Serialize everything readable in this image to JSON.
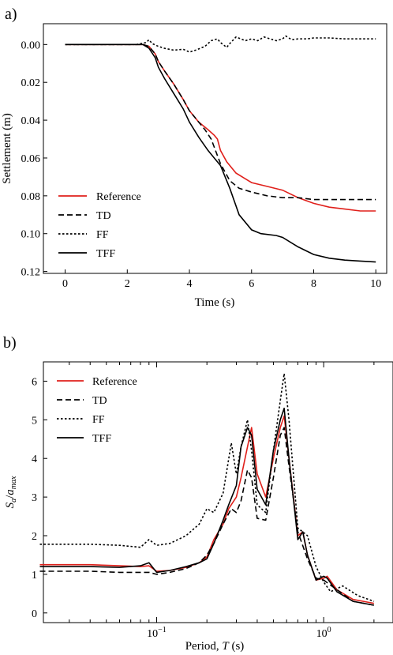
{
  "chart_data": [
    {
      "type": "line",
      "panel_label": "a)",
      "xlabel": "Time (s)",
      "ylabel": "Settlement (m)",
      "xlim": [
        -0.7,
        10.35
      ],
      "ylim": [
        0.121,
        -0.011
      ],
      "y_inverted": true,
      "x_scale": "linear",
      "grid": false,
      "legend_position": "lower-left",
      "xticks": [
        0,
        2,
        4,
        6,
        8,
        10
      ],
      "xtick_labels": [
        "0",
        "2",
        "4",
        "6",
        "8",
        "10"
      ],
      "yticks": [
        0.0,
        0.02,
        0.04,
        0.06,
        0.08,
        0.1,
        0.12
      ],
      "ytick_labels": [
        "0.00",
        "0.02",
        "0.04",
        "0.06",
        "0.08",
        "0.10",
        "0.12"
      ],
      "series": [
        {
          "name": "Reference",
          "color": "#e0201b",
          "style": "solid",
          "x": [
            0,
            2.5,
            2.7,
            2.9,
            3.0,
            3.2,
            3.5,
            3.8,
            4.0,
            4.3,
            4.6,
            4.8,
            4.9,
            5.0,
            5.2,
            5.5,
            5.8,
            6.0,
            6.5,
            7.0,
            7.5,
            8.0,
            8.5,
            9.0,
            9.5,
            10.0
          ],
          "y": [
            0,
            0,
            0.001,
            0.005,
            0.009,
            0.014,
            0.021,
            0.029,
            0.035,
            0.041,
            0.045,
            0.048,
            0.05,
            0.056,
            0.062,
            0.068,
            0.071,
            0.073,
            0.075,
            0.077,
            0.081,
            0.084,
            0.086,
            0.087,
            0.088,
            0.088
          ]
        },
        {
          "name": "TD",
          "color": "#000000",
          "style": "dashed",
          "x": [
            0,
            2.5,
            2.7,
            2.9,
            3.0,
            3.2,
            3.5,
            3.8,
            4.0,
            4.3,
            4.5,
            4.7,
            5.0,
            5.3,
            5.6,
            6.0,
            6.5,
            7.0,
            7.5,
            8.0,
            9.0,
            10.0
          ],
          "y": [
            0,
            0,
            0.001,
            0.005,
            0.009,
            0.014,
            0.021,
            0.029,
            0.035,
            0.041,
            0.045,
            0.05,
            0.063,
            0.072,
            0.076,
            0.078,
            0.08,
            0.081,
            0.081,
            0.082,
            0.082,
            0.082
          ]
        },
        {
          "name": "FF",
          "color": "#000000",
          "style": "dotted",
          "x": [
            0,
            2.3,
            2.6,
            2.7,
            2.8,
            3.0,
            3.2,
            3.5,
            3.8,
            4.0,
            4.2,
            4.5,
            4.7,
            4.9,
            5.0,
            5.2,
            5.3,
            5.5,
            5.8,
            6.0,
            6.2,
            6.4,
            6.6,
            6.8,
            7.0,
            7.1,
            7.2,
            7.3,
            7.5,
            7.8,
            8.0,
            8.5,
            9.0,
            9.5,
            10.0
          ],
          "y": [
            0,
            0,
            -0.001,
            -0.0025,
            -0.0005,
            0.001,
            0.002,
            0.003,
            0.0025,
            0.004,
            0.003,
            0.001,
            -0.002,
            -0.003,
            -0.001,
            0.0015,
            -0.0005,
            -0.004,
            -0.002,
            -0.003,
            -0.002,
            -0.004,
            -0.003,
            -0.002,
            -0.003,
            -0.0045,
            -0.0035,
            -0.0025,
            -0.003,
            -0.003,
            -0.0035,
            -0.0035,
            -0.003,
            -0.003,
            -0.003
          ]
        },
        {
          "name": "TFF",
          "color": "#000000",
          "style": "solid",
          "x": [
            0,
            2.5,
            2.7,
            2.9,
            3.0,
            3.2,
            3.5,
            3.8,
            4.0,
            4.3,
            4.6,
            4.8,
            5.0,
            5.3,
            5.6,
            6.0,
            6.3,
            6.8,
            7.0,
            7.5,
            8.0,
            8.5,
            9.0,
            9.5,
            10.0
          ],
          "y": [
            0,
            0,
            0.002,
            0.007,
            0.012,
            0.018,
            0.026,
            0.034,
            0.041,
            0.049,
            0.056,
            0.06,
            0.064,
            0.076,
            0.09,
            0.098,
            0.1,
            0.101,
            0.102,
            0.107,
            0.111,
            0.113,
            0.114,
            0.1145,
            0.115
          ]
        }
      ]
    },
    {
      "type": "line",
      "panel_label": "b)",
      "xlabel_prefix": "Period, ",
      "xlabel_var": "T",
      "xlabel_suffix": " (s)",
      "ylabel_var": "S",
      "ylabel_sub": "a",
      "ylabel_slash": "/",
      "ylabel_var2": "a",
      "ylabel_sub2": "max",
      "x_scale": "log",
      "xlim": [
        0.021,
        2.6
      ],
      "ylim": [
        -0.25,
        6.5
      ],
      "grid": false,
      "legend_position": "upper-left",
      "xtick_labels": [
        {
          "base": "10",
          "exp": "−1",
          "value": 0.1
        },
        {
          "base": "10",
          "exp": "0",
          "value": 1
        }
      ],
      "yticks": [
        0,
        1,
        2,
        3,
        4,
        5,
        6
      ],
      "ytick_labels": [
        "0",
        "1",
        "2",
        "3",
        "4",
        "5",
        "6"
      ],
      "series": [
        {
          "name": "Reference",
          "color": "#e0201b",
          "style": "solid",
          "x": [
            0.02,
            0.04,
            0.06,
            0.08,
            0.09,
            0.1,
            0.12,
            0.15,
            0.18,
            0.2,
            0.22,
            0.25,
            0.27,
            0.3,
            0.32,
            0.35,
            0.37,
            0.4,
            0.45,
            0.5,
            0.55,
            0.58,
            0.62,
            0.7,
            0.75,
            0.8,
            0.9,
            1.0,
            1.05,
            1.2,
            1.5,
            2.0
          ],
          "y": [
            1.25,
            1.25,
            1.22,
            1.2,
            1.22,
            1.08,
            1.1,
            1.18,
            1.3,
            1.45,
            1.9,
            2.3,
            2.7,
            3.0,
            3.5,
            4.3,
            4.8,
            3.6,
            3.0,
            4.0,
            4.8,
            5.1,
            4.0,
            2.0,
            2.1,
            1.5,
            0.85,
            0.9,
            0.95,
            0.6,
            0.35,
            0.25
          ]
        },
        {
          "name": "TD",
          "color": "#000000",
          "style": "dashed",
          "x": [
            0.02,
            0.04,
            0.06,
            0.08,
            0.09,
            0.1,
            0.12,
            0.15,
            0.18,
            0.2,
            0.22,
            0.25,
            0.28,
            0.3,
            0.32,
            0.35,
            0.37,
            0.4,
            0.45,
            0.5,
            0.55,
            0.58,
            0.62,
            0.7,
            0.8,
            0.9,
            1.0,
            1.2,
            1.5,
            2.0
          ],
          "y": [
            1.08,
            1.08,
            1.05,
            1.05,
            1.05,
            1.0,
            1.05,
            1.15,
            1.3,
            1.5,
            1.8,
            2.3,
            2.7,
            2.6,
            2.9,
            3.7,
            3.5,
            2.45,
            2.4,
            3.5,
            4.6,
            4.8,
            3.8,
            2.1,
            1.4,
            0.9,
            0.85,
            0.6,
            0.3,
            0.2
          ]
        },
        {
          "name": "FF",
          "color": "#000000",
          "style": "dotted",
          "x": [
            0.02,
            0.04,
            0.06,
            0.08,
            0.09,
            0.1,
            0.12,
            0.15,
            0.18,
            0.2,
            0.22,
            0.25,
            0.28,
            0.3,
            0.32,
            0.35,
            0.37,
            0.4,
            0.45,
            0.5,
            0.55,
            0.58,
            0.62,
            0.7,
            0.8,
            0.9,
            1.0,
            1.1,
            1.3,
            1.6,
            2.0
          ],
          "y": [
            1.78,
            1.78,
            1.75,
            1.7,
            1.9,
            1.75,
            1.8,
            2.0,
            2.3,
            2.7,
            2.6,
            3.1,
            4.4,
            3.6,
            4.3,
            5.0,
            4.2,
            2.8,
            2.6,
            4.2,
            5.5,
            6.2,
            5.0,
            2.2,
            2.0,
            1.2,
            0.8,
            0.55,
            0.7,
            0.45,
            0.3
          ]
        },
        {
          "name": "TFF",
          "color": "#000000",
          "style": "solid",
          "x": [
            0.02,
            0.04,
            0.06,
            0.08,
            0.09,
            0.1,
            0.12,
            0.15,
            0.18,
            0.2,
            0.22,
            0.25,
            0.27,
            0.3,
            0.32,
            0.35,
            0.37,
            0.4,
            0.45,
            0.5,
            0.55,
            0.58,
            0.62,
            0.7,
            0.75,
            0.8,
            0.9,
            1.0,
            1.05,
            1.2,
            1.5,
            2.0
          ],
          "y": [
            1.2,
            1.2,
            1.18,
            1.22,
            1.3,
            1.05,
            1.1,
            1.2,
            1.3,
            1.4,
            1.8,
            2.4,
            2.8,
            3.3,
            4.3,
            4.8,
            4.6,
            3.2,
            2.8,
            4.2,
            5.0,
            5.3,
            4.0,
            1.9,
            2.1,
            1.5,
            0.85,
            0.95,
            0.9,
            0.55,
            0.3,
            0.2
          ]
        }
      ]
    }
  ]
}
